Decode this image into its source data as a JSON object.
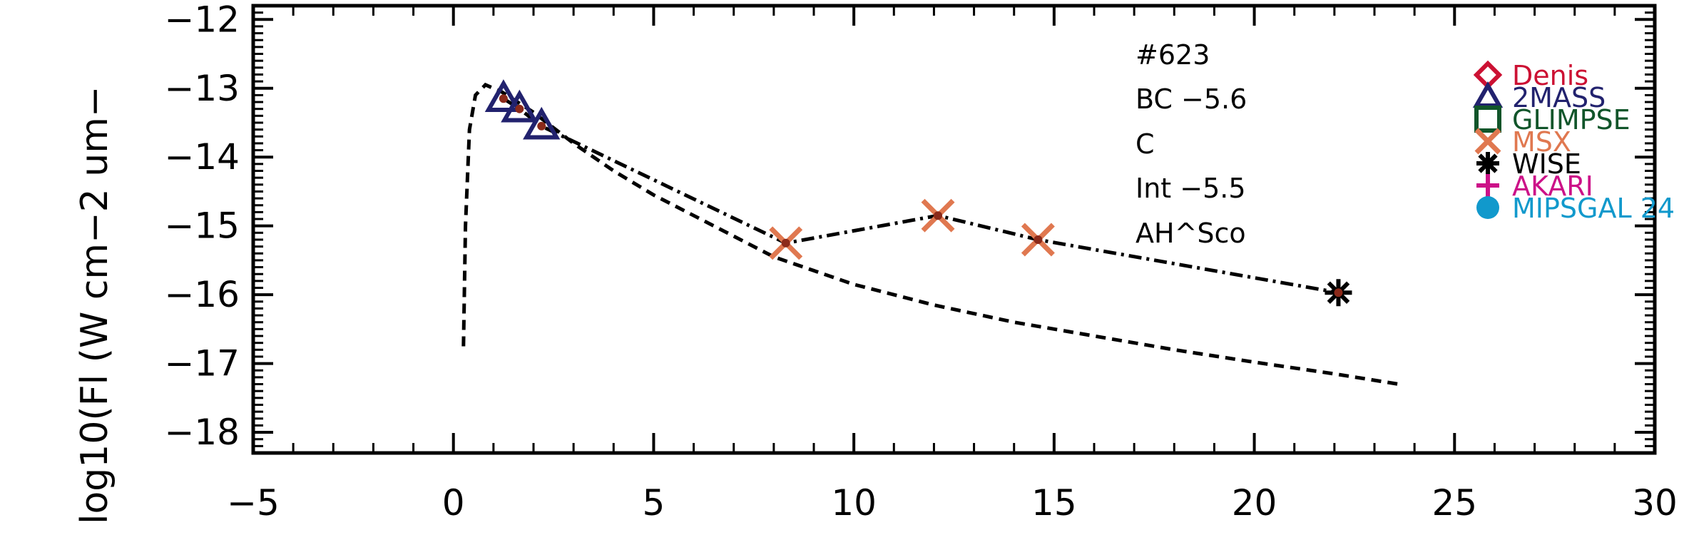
{
  "chart_data": {
    "type": "scatter",
    "title": "",
    "xlabel": "",
    "ylabel": "log10(Fl (W cm−2 um−",
    "xlim": [
      -5,
      30
    ],
    "ylim": [
      -18.3,
      -11.8
    ],
    "x_tick_labels": [
      "−5",
      "0",
      "5",
      "10",
      "15",
      "20",
      "25",
      "30"
    ],
    "x_tick_values": [
      -5,
      0,
      5,
      10,
      15,
      20,
      25,
      30
    ],
    "y_tick_labels": [
      "−12",
      "−13",
      "−14",
      "−15",
      "−16",
      "−17",
      "−18"
    ],
    "y_tick_values": [
      -12,
      -13,
      -14,
      -15,
      -16,
      -17,
      -18
    ],
    "annotations": [
      "#623",
      "BC −5.6",
      "C",
      "Int −5.5",
      "AH^Sco"
    ],
    "legend": {
      "placement": "right",
      "entries": [
        {
          "label": "Denis",
          "marker": "diamond",
          "color": "#cc1133"
        },
        {
          "label": "2MASS",
          "marker": "triangle",
          "color": "#22226e"
        },
        {
          "label": "GLIMPSE",
          "marker": "square",
          "color": "#11552a"
        },
        {
          "label": "MSX",
          "marker": "x",
          "color": "#e07850"
        },
        {
          "label": "WISE",
          "marker": "asterisk",
          "color": "#000000"
        },
        {
          "label": "AKARI",
          "marker": "plus",
          "color": "#cc1188"
        },
        {
          "label": "MIPSGAL 24",
          "marker": "circle",
          "color": "#1199cc"
        }
      ]
    },
    "series": [
      {
        "marker": "triangle",
        "color": "#22226e",
        "points": [
          [
            1.25,
            -13.15
          ],
          [
            1.65,
            -13.3
          ],
          [
            2.2,
            -13.55
          ]
        ]
      },
      {
        "marker": "x",
        "color": "#e07850",
        "points": [
          [
            8.3,
            -15.25
          ],
          [
            12.1,
            -14.85
          ],
          [
            14.6,
            -15.2
          ]
        ]
      },
      {
        "marker": "asterisk",
        "color": "#000000",
        "points": [
          [
            22.1,
            -15.97
          ]
        ]
      },
      {
        "marker": "dot",
        "color": "#8b2a1a",
        "points": [
          [
            1.25,
            -13.15
          ],
          [
            1.65,
            -13.3
          ],
          [
            2.2,
            -13.55
          ],
          [
            8.3,
            -15.25
          ],
          [
            12.1,
            -14.85
          ],
          [
            14.6,
            -15.2
          ],
          [
            22.1,
            -15.97
          ]
        ]
      }
    ],
    "lines": [
      {
        "style": "dash-dot",
        "points": [
          [
            1.25,
            -13.15
          ],
          [
            1.65,
            -13.3
          ],
          [
            2.2,
            -13.55
          ],
          [
            8.3,
            -15.25
          ],
          [
            12.1,
            -14.85
          ],
          [
            14.6,
            -15.2
          ],
          [
            22.1,
            -15.97
          ]
        ]
      },
      {
        "style": "dashed",
        "points": [
          [
            0.25,
            -16.75
          ],
          [
            0.3,
            -15.0
          ],
          [
            0.4,
            -13.6
          ],
          [
            0.55,
            -13.1
          ],
          [
            0.8,
            -12.95
          ],
          [
            1.2,
            -13.05
          ],
          [
            2,
            -13.35
          ],
          [
            3,
            -13.8
          ],
          [
            4,
            -14.2
          ],
          [
            5,
            -14.55
          ],
          [
            6,
            -14.85
          ],
          [
            7,
            -15.15
          ],
          [
            8,
            -15.45
          ],
          [
            9,
            -15.65
          ],
          [
            10,
            -15.85
          ],
          [
            12,
            -16.15
          ],
          [
            14,
            -16.4
          ],
          [
            16,
            -16.6
          ],
          [
            18,
            -16.8
          ],
          [
            20,
            -16.98
          ],
          [
            22,
            -17.15
          ],
          [
            23.6,
            -17.3
          ]
        ]
      }
    ]
  }
}
